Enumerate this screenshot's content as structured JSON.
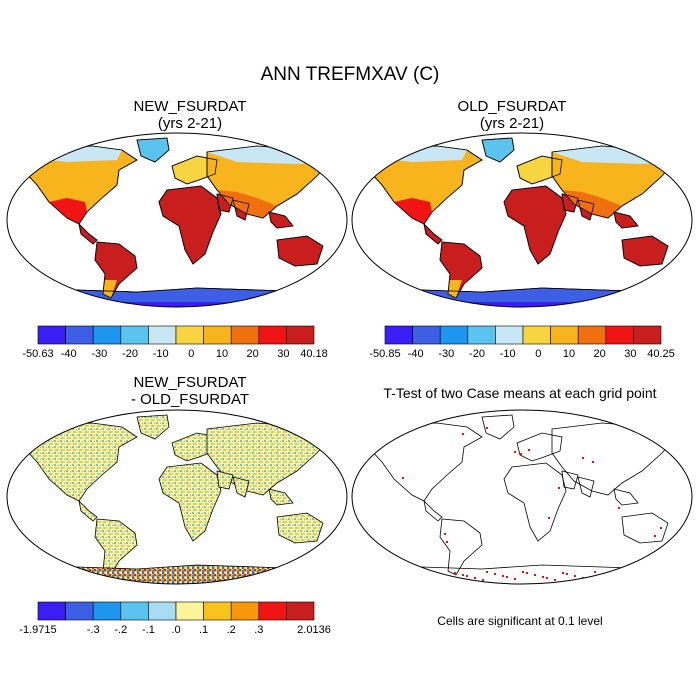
{
  "figure": {
    "title": "ANN TREFMXAV (C)"
  },
  "panels": {
    "new": {
      "title_line1": "NEW_FSURDAT",
      "title_line2": "(yrs 2-21)",
      "colorbar": {
        "colors": [
          "#3a1ef5",
          "#3c5fe6",
          "#1e96f0",
          "#5ac4ee",
          "#c9e6f4",
          "#f7d540",
          "#f8b41c",
          "#f07010",
          "#f01414",
          "#c81e1e"
        ],
        "labels": [
          "-50.63",
          "-40",
          "-30",
          "-20",
          "-10",
          "0",
          "10",
          "20",
          "30",
          "40.18"
        ]
      }
    },
    "old": {
      "title_line1": "OLD_FSURDAT",
      "title_line2": "(yrs 2-21)",
      "colorbar": {
        "colors": [
          "#3a1ef5",
          "#3c5fe6",
          "#1e96f0",
          "#5ac4ee",
          "#c9e6f4",
          "#f7d540",
          "#f8b41c",
          "#f07010",
          "#f01414",
          "#c81e1e"
        ],
        "labels": [
          "-50.85",
          "-40",
          "-30",
          "-20",
          "-10",
          "0",
          "10",
          "20",
          "30",
          "40.25"
        ]
      }
    },
    "diff": {
      "title_line1": "NEW_FSURDAT",
      "title_line2": "- OLD_FSURDAT",
      "colorbar": {
        "colors": [
          "#3a1ef5",
          "#3c5fe6",
          "#1e96f0",
          "#5ac4ee",
          "#a8dcf2",
          "#fbf49a",
          "#f8c41c",
          "#f8960c",
          "#f01414",
          "#c81e1e"
        ],
        "labels": [
          "-1.9715",
          "",
          "-.3",
          "-.2",
          "-.1",
          ".0",
          ".1",
          ".2",
          ".3",
          "",
          "2.0136"
        ]
      }
    },
    "ttest": {
      "title": "T-Test of two Case means at each grid point",
      "note": "Cells are significant at 0.1 level"
    }
  }
}
